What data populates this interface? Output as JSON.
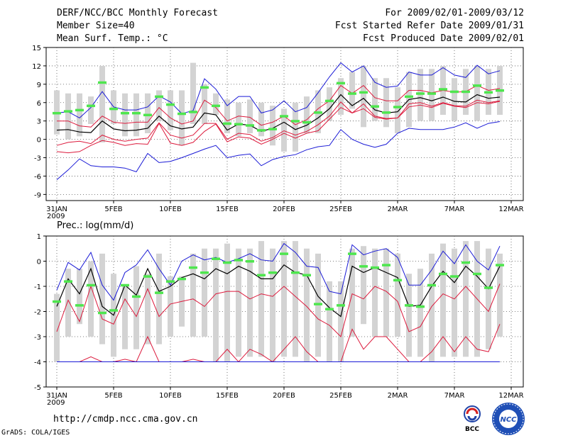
{
  "header": {
    "title": "DERF/NCC/BCC Monthly Forecast",
    "member_size": "Member Size=40",
    "variable": "Mean Surf. Temp.: °C",
    "period": "For 2009/02/01-2009/03/12",
    "fcst_started": "Fcst Started Refer Date 2009/01/31",
    "fcst_produced": "Fcst Produced Date 2009/02/01"
  },
  "footer": {
    "url": "http://cmdp.ncc.cma.gov.cn",
    "grads": "GrADS: COLA/IGES",
    "logo_left_text": "BCC",
    "logo_right_text": "NCC"
  },
  "colors": {
    "box": "#d3d3d3",
    "member": "#4ee64e",
    "envelope": "#1a1ad6",
    "spread": "#dc1a3c",
    "mean": "#000000",
    "grid": "#555555"
  },
  "chart_data": [
    {
      "type": "line",
      "title": "Mean Surf. Temp.: °C",
      "ylim": [
        -10,
        15
      ],
      "yticks": [
        -9,
        -6,
        -3,
        0,
        3,
        6,
        9,
        12,
        15
      ],
      "ytick_labels": [
        "-9",
        "-6",
        "-3",
        "0",
        "3",
        "6",
        "9",
        "12",
        "15"
      ],
      "xtick_labels": [
        "31JAN\n2009",
        "5FEB",
        "10FEB",
        "15FEB",
        "20FEB",
        "25FEB",
        "2MAR",
        "7MAR",
        "12MAR"
      ],
      "x_day_index": [
        0,
        5,
        10,
        15,
        20,
        25,
        30,
        35,
        40
      ],
      "box_low": [
        0.8,
        0,
        0.5,
        2.5,
        -0.5,
        2.5,
        0.5,
        0.5,
        1,
        3,
        1.5,
        -1,
        2.5,
        2.5,
        4,
        1,
        0.5,
        1,
        0.5,
        -1,
        -2,
        -2,
        1,
        1,
        3,
        4,
        5,
        2,
        3,
        2,
        1,
        2,
        3,
        3,
        4,
        3,
        4,
        3,
        4,
        4
      ],
      "box_high": [
        8,
        7.5,
        7.5,
        7,
        12,
        8,
        7.5,
        7.5,
        7.5,
        8,
        8,
        8,
        12.5,
        9,
        7.5,
        6.5,
        6,
        6.5,
        6,
        5.5,
        5,
        6,
        7,
        8,
        8.5,
        10,
        11,
        12,
        10,
        10,
        8.5,
        11,
        11.5,
        11.5,
        12,
        10,
        11.5,
        12,
        11.5,
        12
      ],
      "member_points": [
        4.3,
        4.6,
        4.8,
        5.5,
        9.3,
        5,
        4.3,
        4.3,
        4,
        7,
        5.7,
        4.2,
        4.5,
        8.5,
        5.5,
        2.6,
        2.5,
        2.3,
        1.5,
        1.7,
        3.8,
        3,
        2.8,
        4.4,
        6.3,
        9.2,
        7.5,
        7.7,
        5.4,
        4.4,
        5.3,
        7,
        7.5,
        7.5,
        8.2,
        7.8,
        7.8,
        8.8,
        7.7,
        8
      ],
      "series": [
        {
          "name": "max",
          "color": "#1a1ad6",
          "values": [
            4.3,
            4.5,
            3.5,
            5.2,
            7.8,
            5.3,
            4.8,
            4.8,
            5.3,
            7.1,
            6.1,
            4.2,
            4.7,
            9.9,
            8.2,
            5.5,
            7.0,
            7.0,
            4.3,
            4.8,
            6.3,
            4.5,
            5.2,
            7.6,
            10.2,
            12.5,
            11.0,
            12.0,
            9.3,
            8.5,
            8.7,
            11.0,
            10.5,
            10.5,
            11.7,
            10.5,
            10.1,
            12.1,
            10.7,
            11.2
          ]
        },
        {
          "name": "upper",
          "color": "#dc1a3c",
          "values": [
            3.0,
            3.0,
            2.2,
            2.0,
            3.8,
            2.8,
            2.6,
            2.8,
            2.8,
            5.2,
            3.5,
            2.5,
            3.0,
            6.4,
            5.2,
            3.0,
            3.8,
            3.6,
            2.3,
            2.8,
            3.8,
            2.4,
            3.2,
            5.0,
            6.3,
            8.8,
            7.5,
            8.8,
            6.8,
            6.3,
            6.3,
            8.0,
            8.0,
            7.6,
            8.0,
            7.7,
            7.8,
            8.8,
            8.0,
            8.3
          ]
        },
        {
          "name": "mean",
          "color": "#000000",
          "values": [
            1.5,
            1.6,
            1.2,
            1.1,
            3.0,
            1.7,
            1.4,
            1.5,
            1.8,
            3.8,
            2.2,
            1.7,
            2.0,
            4.3,
            4.0,
            1.5,
            2.5,
            2.3,
            1.3,
            1.8,
            2.8,
            1.6,
            2.3,
            3.5,
            5.0,
            7.3,
            5.5,
            6.7,
            4.8,
            4.3,
            4.5,
            6.5,
            6.8,
            6.3,
            6.9,
            6.2,
            6.1,
            7.3,
            6.7,
            6.9
          ]
        },
        {
          "name": "lower",
          "color": "#dc1a3c",
          "values": [
            -1.0,
            -0.5,
            -0.3,
            -0.7,
            0.7,
            0.0,
            -0.3,
            0.0,
            0.2,
            2.7,
            0.7,
            0.2,
            0.7,
            2.6,
            2.6,
            0.0,
            1.0,
            0.8,
            -0.3,
            0.3,
            1.4,
            0.7,
            1.3,
            2.4,
            3.8,
            6.1,
            4.3,
            5.8,
            3.8,
            3.4,
            3.5,
            5.8,
            6.0,
            5.4,
            6.0,
            5.5,
            5.4,
            6.4,
            6.0,
            6.3
          ]
        },
        {
          "name": "lower2",
          "color": "#dc1a3c",
          "values": [
            -2.0,
            -2.2,
            -2.0,
            -1.0,
            -0.2,
            -0.5,
            -1.0,
            -0.7,
            -0.8,
            2.6,
            -0.6,
            -1.0,
            -0.5,
            1.3,
            2.5,
            -0.4,
            0.4,
            0.2,
            -0.8,
            0.0,
            1.0,
            0.2,
            1.0,
            1.4,
            3.3,
            5.2,
            4.3,
            5.0,
            3.6,
            3.3,
            3.5,
            5.3,
            5.6,
            5.2,
            5.9,
            5.4,
            5.2,
            6.0,
            5.8,
            6.2
          ]
        },
        {
          "name": "min",
          "color": "#1a1ad6",
          "values": [
            -6.6,
            -5.0,
            -3.2,
            -4.3,
            -4.5,
            -4.5,
            -4.7,
            -5.3,
            -2.3,
            -3.8,
            -3.6,
            -3.0,
            -2.3,
            -1.6,
            -1.0,
            -3.0,
            -2.6,
            -2.4,
            -4.3,
            -3.3,
            -2.8,
            -2.5,
            -1.7,
            -1.2,
            -1.0,
            1.6,
            0.0,
            -0.8,
            -1.3,
            -0.8,
            1.0,
            1.8,
            1.6,
            1.6,
            1.6,
            2.0,
            2.7,
            1.8,
            2.6,
            2.9
          ]
        }
      ]
    },
    {
      "type": "line",
      "title": "Prec.: log(mm/d)",
      "ylim": [
        -5,
        1
      ],
      "yticks": [
        -5,
        -4,
        -3,
        -2,
        -1,
        0,
        1
      ],
      "ytick_labels": [
        "-5",
        "-4",
        "-3",
        "-2",
        "-1",
        "0",
        "1"
      ],
      "xtick_labels": [
        "31JAN\n2009",
        "5FEB",
        "10FEB",
        "15FEB",
        "20FEB",
        "25FEB",
        "2MAR",
        "7MAR",
        "12MAR"
      ],
      "x_day_index": [
        0,
        5,
        10,
        15,
        20,
        25,
        30,
        35,
        40
      ],
      "box_low": [
        -4,
        -3,
        -2.5,
        -3,
        -3.3,
        -3.8,
        -3.5,
        -3.5,
        -3.3,
        -3.3,
        -3,
        -2.6,
        -3,
        -3,
        -4,
        -4,
        -3.8,
        -3.8,
        -3.8,
        -4,
        -3.8,
        -3.8,
        -4,
        -3.8,
        -4,
        -4,
        -3,
        -2.5,
        -3,
        -3,
        -3,
        -3.8,
        -3.8,
        -4,
        -3.8,
        -3.8,
        -3.8,
        -3.8,
        -3.5,
        -3
      ],
      "box_high": [
        -1.3,
        -0.3,
        -0.3,
        0,
        0.3,
        -0.5,
        -1,
        -0.2,
        -0.5,
        0.3,
        -0.6,
        -0.6,
        0.3,
        0.5,
        0.5,
        0.7,
        0.5,
        0.5,
        0.8,
        0.5,
        0.8,
        0.8,
        0.5,
        0.3,
        -0.8,
        -0.8,
        0.5,
        0.6,
        0.5,
        0.5,
        0.3,
        -0.5,
        -0.3,
        0.3,
        0.7,
        0.5,
        0.8,
        0.8,
        0.5,
        0.3
      ],
      "member_points": [
        -1.6,
        -0.8,
        -1.75,
        -0.95,
        -2.05,
        -1.95,
        -0.95,
        -1.4,
        -0.6,
        -1.25,
        -0.8,
        -0.7,
        -0.25,
        -0.45,
        0.1,
        -0.05,
        0.05,
        0.0,
        -0.55,
        -0.45,
        0.3,
        -0.45,
        -0.55,
        -1.7,
        -1.9,
        -1.75,
        0.3,
        -0.2,
        -0.25,
        -0.15,
        -0.75,
        -1.75,
        -1.8,
        -0.95,
        -0.5,
        -0.6,
        -0.05,
        -0.5,
        -1.05,
        -0.15
      ],
      "series": [
        {
          "name": "max",
          "color": "#1a1ad6",
          "values": [
            -1.15,
            -0.05,
            -0.35,
            0.35,
            -0.95,
            -1.55,
            -0.45,
            -0.15,
            0.45,
            -0.3,
            -0.95,
            0.0,
            0.25,
            0.05,
            0.15,
            -0.05,
            0.1,
            0.3,
            0.05,
            0.0,
            0.7,
            0.35,
            -0.2,
            -0.25,
            -1.2,
            -1.3,
            0.65,
            0.25,
            0.4,
            0.5,
            0.15,
            -0.95,
            -0.95,
            -0.35,
            0.4,
            -0.1,
            0.65,
            0.0,
            -0.35,
            0.6
          ]
        },
        {
          "name": "mean",
          "color": "#000000",
          "values": [
            -1.8,
            -0.7,
            -1.3,
            -0.3,
            -1.8,
            -2.15,
            -0.95,
            -1.35,
            -0.3,
            -1.2,
            -1.0,
            -0.65,
            -0.5,
            -0.7,
            -0.3,
            -0.5,
            -0.2,
            -0.4,
            -0.7,
            -0.7,
            -0.15,
            -0.45,
            -0.55,
            -1.4,
            -1.85,
            -2.2,
            -0.2,
            -0.45,
            -0.25,
            -0.45,
            -0.65,
            -1.8,
            -1.75,
            -1.0,
            -0.4,
            -0.85,
            -0.2,
            -0.6,
            -1.1,
            -0.2
          ]
        },
        {
          "name": "upper",
          "color": "#dc1a3c",
          "values": [
            -2.8,
            -1.55,
            -2.4,
            -1.0,
            -2.3,
            -2.5,
            -1.5,
            -2.2,
            -1.1,
            -2.2,
            -1.7,
            -1.6,
            -1.5,
            -1.8,
            -1.3,
            -1.2,
            -1.2,
            -1.5,
            -1.3,
            -1.4,
            -1.0,
            -1.4,
            -1.8,
            -2.3,
            -2.55,
            -3.0,
            -1.3,
            -1.5,
            -1.0,
            -1.2,
            -1.6,
            -2.8,
            -2.6,
            -1.8,
            -1.3,
            -1.5,
            -1.0,
            -1.5,
            -2.0,
            -0.9
          ]
        },
        {
          "name": "lower",
          "color": "#dc1a3c",
          "values": [
            -4.0,
            -4.0,
            -4.0,
            -3.8,
            -4.0,
            -4.0,
            -3.9,
            -4.0,
            -3.0,
            -4.0,
            -4.0,
            -4.0,
            -3.9,
            -4.0,
            -4.0,
            -3.5,
            -4.0,
            -3.5,
            -3.7,
            -4.0,
            -3.5,
            -3.0,
            -3.6,
            -4.0,
            -4.0,
            -4.0,
            -2.7,
            -3.5,
            -3.0,
            -3.0,
            -3.5,
            -4.0,
            -4.0,
            -3.6,
            -3.0,
            -3.6,
            -3.0,
            -3.5,
            -3.6,
            -2.5
          ]
        },
        {
          "name": "min",
          "color": "#1a1ad6",
          "values": [
            -4.0,
            -4.0,
            -4.0,
            -4.0,
            -4.0,
            -4.0,
            -4.0,
            -4.0,
            -4.0,
            -4.0,
            -4.0,
            -4.0,
            -4.0,
            -4.0,
            -4.0,
            -4.0,
            -4.0,
            -4.0,
            -4.0,
            -4.0,
            -4.0,
            -4.0,
            -4.0,
            -4.0,
            -4.0,
            -4.0,
            -4.0,
            -4.0,
            -4.0,
            -4.0,
            -4.0,
            -4.0,
            -4.0,
            -4.0,
            -4.0,
            -4.0,
            -4.0,
            -4.0,
            -4.0,
            -4.0
          ]
        }
      ]
    }
  ]
}
